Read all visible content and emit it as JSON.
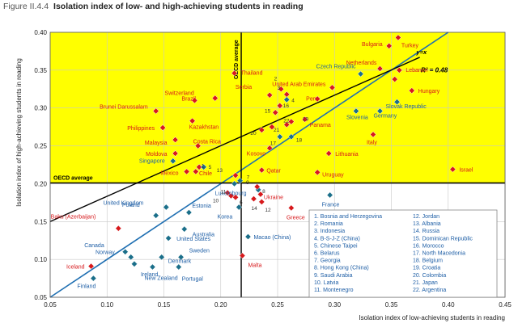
{
  "figure": {
    "number": "Figure II.4.4",
    "title": "Isolation index of low- and high-achieving students in reading"
  },
  "colors": {
    "background_fill": "#ffff00",
    "diamond_red": "#d7191c",
    "diamond_teal": "#1b6f8a",
    "label_red": "#d7191c",
    "label_blue": "#1f5fa6",
    "fit_line": "#1f6fb2",
    "regression_line": "#000000"
  },
  "chart_data": {
    "type": "scatter",
    "xlabel": "Isolation index of low-achieving students in reading",
    "ylabel": "Isolation index of high-achieving students in reading",
    "xlim": [
      0.05,
      0.45
    ],
    "ylim": [
      0.05,
      0.4
    ],
    "xticks": [
      "0.05",
      "0.10",
      "0.15",
      "0.20",
      "0.25",
      "0.30",
      "0.35",
      "0.40",
      "0.45"
    ],
    "yticks": [
      "0.05",
      "0.10",
      "0.15",
      "0.20",
      "0.25",
      "0.30",
      "0.35",
      "0.40"
    ],
    "oecd_average_x": 0.218,
    "oecd_average_y": 0.201,
    "oecd_label_v": "OECD average",
    "oecd_label_h": "OECD average",
    "yx_label": "y=x",
    "r2_label": "R² = 0.48",
    "regression_line": [
      [
        0.05,
        0.15
      ],
      [
        0.375,
        0.367
      ]
    ],
    "points": [
      {
        "label": "Turkey",
        "x": 0.356,
        "y": 0.393,
        "color": "red"
      },
      {
        "label": "Bulgaria",
        "x": 0.348,
        "y": 0.382,
        "color": "red"
      },
      {
        "label": "Netherlands",
        "x": 0.34,
        "y": 0.352,
        "color": "red"
      },
      {
        "label": "Lebanon",
        "x": 0.357,
        "y": 0.35,
        "color": "red"
      },
      {
        "label": "Czech Republic",
        "x": 0.323,
        "y": 0.345,
        "color": "teal"
      },
      {
        "label": "",
        "x": 0.353,
        "y": 0.338,
        "color": "red"
      },
      {
        "label": "United Arab Emirates",
        "x": 0.298,
        "y": 0.327,
        "color": "red"
      },
      {
        "label": "Hungary",
        "x": 0.368,
        "y": 0.323,
        "color": "red"
      },
      {
        "label": "Slovak Republic",
        "x": 0.355,
        "y": 0.308,
        "color": "teal"
      },
      {
        "label": "Germany",
        "x": 0.34,
        "y": 0.296,
        "color": "teal"
      },
      {
        "label": "Slovenia",
        "x": 0.319,
        "y": 0.296,
        "color": "teal"
      },
      {
        "label": "Italy",
        "x": 0.334,
        "y": 0.265,
        "color": "red"
      },
      {
        "label": "Peru",
        "x": 0.285,
        "y": 0.312,
        "color": "red"
      },
      {
        "label": "Lithuania",
        "x": 0.295,
        "y": 0.24,
        "color": "red"
      },
      {
        "label": "Uruguay",
        "x": 0.285,
        "y": 0.215,
        "color": "red"
      },
      {
        "label": "Israel",
        "x": 0.404,
        "y": 0.219,
        "color": "red"
      },
      {
        "label": "Thailand",
        "x": 0.212,
        "y": 0.346,
        "color": "red"
      },
      {
        "label": "Switzerland",
        "x": 0.195,
        "y": 0.313,
        "color": "red"
      },
      {
        "label": "Brazil",
        "x": 0.177,
        "y": 0.31,
        "color": "red"
      },
      {
        "label": "Brunei Darussalam",
        "x": 0.143,
        "y": 0.296,
        "color": "red"
      },
      {
        "label": "Kazakhstan",
        "x": 0.175,
        "y": 0.283,
        "color": "red"
      },
      {
        "label": "Philippines",
        "x": 0.149,
        "y": 0.274,
        "color": "red"
      },
      {
        "label": "Malaysia",
        "x": 0.16,
        "y": 0.258,
        "color": "red"
      },
      {
        "label": "Costa Rica",
        "x": 0.18,
        "y": 0.25,
        "color": "red"
      },
      {
        "label": "Moldova",
        "x": 0.16,
        "y": 0.24,
        "color": "red"
      },
      {
        "label": "Singapore",
        "x": 0.158,
        "y": 0.23,
        "color": "teal"
      },
      {
        "label": "Mexico",
        "x": 0.17,
        "y": 0.216,
        "color": "red"
      },
      {
        "label": "Chile",
        "x": 0.181,
        "y": 0.222,
        "color": "red"
      },
      {
        "label": "Serbia",
        "x": 0.243,
        "y": 0.317,
        "color": "red"
      },
      {
        "label": "Kosovo",
        "x": 0.243,
        "y": 0.247,
        "color": "red"
      },
      {
        "label": "Qatar",
        "x": 0.236,
        "y": 0.218,
        "color": "red"
      },
      {
        "label": "Panama",
        "x": 0.274,
        "y": 0.285,
        "color": "red"
      },
      {
        "label": "Luxembourg",
        "x": 0.212,
        "y": 0.2,
        "color": "teal"
      },
      {
        "label": "Korea",
        "x": 0.216,
        "y": 0.169,
        "color": "teal"
      },
      {
        "label": "United Kingdom",
        "x": 0.152,
        "y": 0.169,
        "color": "teal"
      },
      {
        "label": "Poland",
        "x": 0.143,
        "y": 0.158,
        "color": "teal"
      },
      {
        "label": "Estonia",
        "x": 0.172,
        "y": 0.162,
        "color": "teal"
      },
      {
        "label": "Australia",
        "x": 0.168,
        "y": 0.14,
        "color": "teal"
      },
      {
        "label": "Baku (Azerbaijan)",
        "x": 0.11,
        "y": 0.141,
        "color": "red"
      },
      {
        "label": "United States",
        "x": 0.154,
        "y": 0.128,
        "color": "teal"
      },
      {
        "label": "France",
        "x": 0.296,
        "y": 0.185,
        "color": "teal"
      },
      {
        "label": "Ukraine",
        "x": 0.235,
        "y": 0.186,
        "color": "red"
      },
      {
        "label": "Greece",
        "x": 0.262,
        "y": 0.168,
        "color": "red"
      },
      {
        "label": "Macao (China)",
        "x": 0.224,
        "y": 0.13,
        "color": "teal"
      },
      {
        "label": "Malta",
        "x": 0.219,
        "y": 0.105,
        "color": "red"
      },
      {
        "label": "Canada",
        "x": 0.116,
        "y": 0.11,
        "color": "teal"
      },
      {
        "label": "Norway",
        "x": 0.121,
        "y": 0.103,
        "color": "teal"
      },
      {
        "label": "Sweden",
        "x": 0.165,
        "y": 0.103,
        "color": "teal"
      },
      {
        "label": "Denmark",
        "x": 0.148,
        "y": 0.103,
        "color": "teal"
      },
      {
        "label": "Ireland",
        "x": 0.124,
        "y": 0.094,
        "color": "teal"
      },
      {
        "label": "New Zealand",
        "x": 0.14,
        "y": 0.09,
        "color": "teal"
      },
      {
        "label": "Portugal",
        "x": 0.163,
        "y": 0.09,
        "color": "teal"
      },
      {
        "label": "Iceland",
        "x": 0.086,
        "y": 0.091,
        "color": "red"
      },
      {
        "label": "Finland",
        "x": 0.088,
        "y": 0.075,
        "color": "teal"
      },
      {
        "label": "1",
        "x": 0.178,
        "y": 0.216,
        "color": "red"
      },
      {
        "label": "2",
        "x": 0.253,
        "y": 0.325,
        "color": "red"
      },
      {
        "label": "3",
        "x": 0.258,
        "y": 0.318,
        "color": "red"
      },
      {
        "label": "4",
        "x": 0.258,
        "y": 0.311,
        "color": "teal"
      },
      {
        "label": "5",
        "x": 0.185,
        "y": 0.222,
        "color": "teal"
      },
      {
        "label": "6",
        "x": 0.213,
        "y": 0.182,
        "color": "red"
      },
      {
        "label": "7",
        "x": 0.217,
        "y": 0.204,
        "color": "teal"
      },
      {
        "label": "8",
        "x": 0.233,
        "y": 0.192,
        "color": "teal"
      },
      {
        "label": "9",
        "x": 0.232,
        "y": 0.196,
        "color": "red"
      },
      {
        "label": "10",
        "x": 0.206,
        "y": 0.188,
        "color": "red"
      },
      {
        "label": "11",
        "x": 0.209,
        "y": 0.184,
        "color": "red"
      },
      {
        "label": "12",
        "x": 0.236,
        "y": 0.176,
        "color": "red"
      },
      {
        "label": "13",
        "x": 0.213,
        "y": 0.211,
        "color": "red"
      },
      {
        "label": "14",
        "x": 0.229,
        "y": 0.18,
        "color": "red"
      },
      {
        "label": "15",
        "x": 0.248,
        "y": 0.294,
        "color": "red"
      },
      {
        "label": "16",
        "x": 0.252,
        "y": 0.303,
        "color": "red"
      },
      {
        "label": "17",
        "x": 0.252,
        "y": 0.262,
        "color": "teal"
      },
      {
        "label": "18",
        "x": 0.262,
        "y": 0.262,
        "color": "teal"
      },
      {
        "label": "19",
        "x": 0.262,
        "y": 0.282,
        "color": "red"
      },
      {
        "label": "20",
        "x": 0.236,
        "y": 0.271,
        "color": "red"
      },
      {
        "label": "21",
        "x": 0.245,
        "y": 0.275,
        "color": "red"
      },
      {
        "label": "22",
        "x": 0.258,
        "y": 0.278,
        "color": "red"
      }
    ],
    "key_col1": [
      "1. Bosnia and Herzegovina",
      "2. Romania",
      "3. Indonesia",
      "4. B-S-J-Z (China)",
      "5. Chinese Taipei",
      "6. Belarus",
      "7. Georgia",
      "8. Hong Kong (China)",
      "9. Saudi Arabia",
      "10. Latvia",
      "11. Montenegro"
    ],
    "key_col2": [
      "12. Jordan",
      "13. Albania",
      "14. Russia",
      "15. Dominican Republic",
      "16. Morocco",
      "17. North Macedonia",
      "18. Belgium",
      "19. Croatia",
      "20. Colombia",
      "21. Japan",
      "22. Argentina"
    ]
  }
}
